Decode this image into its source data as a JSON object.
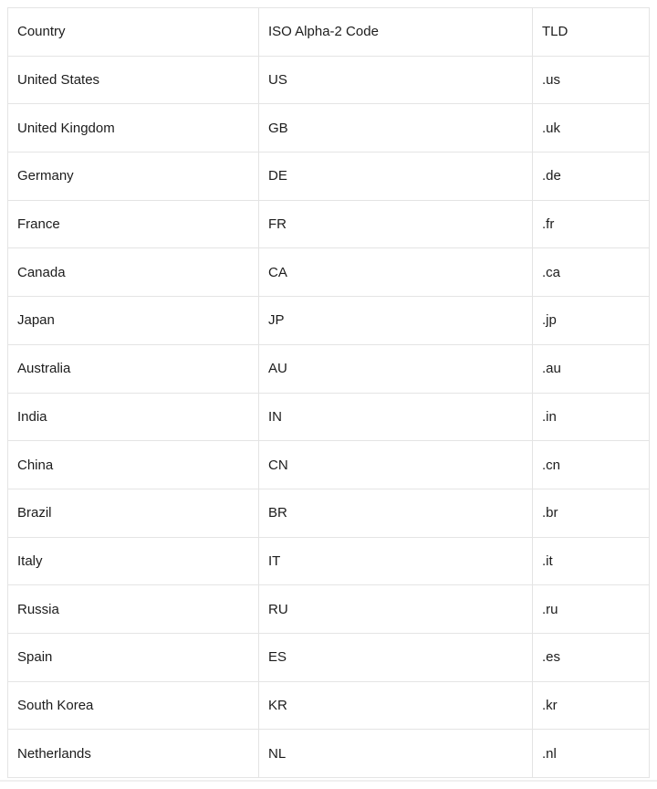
{
  "table": {
    "columns": [
      "Country",
      "ISO Alpha-2 Code",
      "TLD"
    ],
    "rows": [
      {
        "country": "United States",
        "code": "US",
        "tld": ".us"
      },
      {
        "country": "United Kingdom",
        "code": "GB",
        "tld": ".uk"
      },
      {
        "country": "Germany",
        "code": "DE",
        "tld": ".de"
      },
      {
        "country": "France",
        "code": "FR",
        "tld": ".fr"
      },
      {
        "country": "Canada",
        "code": "CA",
        "tld": ".ca"
      },
      {
        "country": "Japan",
        "code": "JP",
        "tld": ".jp"
      },
      {
        "country": "Australia",
        "code": "AU",
        "tld": ".au"
      },
      {
        "country": "India",
        "code": "IN",
        "tld": ".in"
      },
      {
        "country": "China",
        "code": "CN",
        "tld": ".cn"
      },
      {
        "country": "Brazil",
        "code": "BR",
        "tld": ".br"
      },
      {
        "country": "Italy",
        "code": "IT",
        "tld": ".it"
      },
      {
        "country": "Russia",
        "code": "RU",
        "tld": ".ru"
      },
      {
        "country": "Spain",
        "code": "ES",
        "tld": ".es"
      },
      {
        "country": "South Korea",
        "code": "KR",
        "tld": ".kr"
      },
      {
        "country": "Netherlands",
        "code": "NL",
        "tld": ".nl"
      }
    ]
  },
  "colors": {
    "border": "#e4e4e4",
    "text": "#1c1c1c",
    "background": "#ffffff",
    "bottom_divider": "#f0f0f0"
  }
}
